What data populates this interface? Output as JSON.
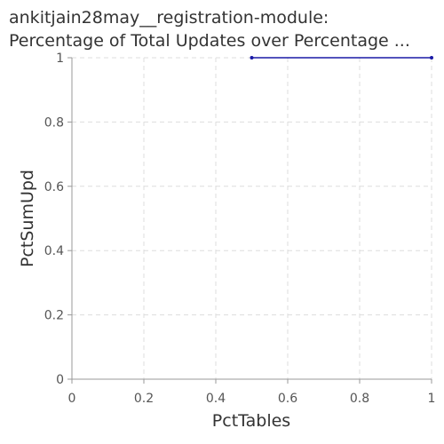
{
  "chart_data": {
    "type": "line",
    "title_lines": [
      "ankitjain28may__registration-module:",
      "Percentage of Total Updates over Percentage ..."
    ],
    "xlabel": "PctTables",
    "ylabel": "PctSumUpd",
    "xlim": [
      0,
      1
    ],
    "ylim": [
      0,
      1
    ],
    "x_ticks": [
      "0",
      "0.2",
      "0.4",
      "0.6",
      "0.8",
      "1"
    ],
    "y_ticks": [
      "0",
      "0.2",
      "0.4",
      "0.6",
      "0.8",
      "1"
    ],
    "grid": true,
    "series": [
      {
        "color": "#1a1aa6",
        "x": [
          0.5,
          1.0
        ],
        "y": [
          1.0,
          1.0
        ]
      }
    ]
  }
}
